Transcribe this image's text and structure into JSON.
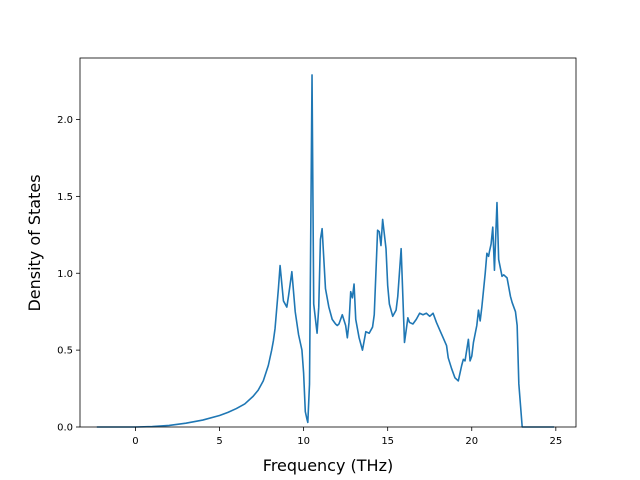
{
  "chart_data": {
    "type": "line",
    "title": "",
    "xlabel": "Frequency (THz)",
    "ylabel": "Density of States",
    "xlim": [
      -3.3,
      26.2
    ],
    "ylim": [
      0.0,
      2.4
    ],
    "grid": false,
    "legend": "none",
    "xticks": [
      0,
      5,
      10,
      15,
      20,
      25
    ],
    "yticks": [
      0.0,
      0.5,
      1.0,
      1.5,
      2.0
    ],
    "xtick_labels": [
      "0",
      "5",
      "10",
      "15",
      "20",
      "25"
    ],
    "ytick_labels": [
      "0.0",
      "0.5",
      "1.0",
      "1.5",
      "2.0"
    ],
    "series": [
      {
        "color": "#1f77b4",
        "x": [
          -2.3,
          -1,
          0,
          1,
          2,
          3,
          4,
          5,
          5.5,
          6,
          6.5,
          7,
          7.3,
          7.6,
          7.9,
          8.1,
          8.2,
          8.3,
          8.5,
          8.6,
          8.8,
          9.0,
          9.1,
          9.3,
          9.5,
          9.7,
          9.9,
          10.0,
          10.1,
          10.2,
          10.25,
          10.35,
          10.5,
          10.6,
          10.8,
          10.9,
          11.0,
          11.1,
          11.3,
          11.5,
          11.7,
          11.9,
          12.0,
          12.1,
          12.3,
          12.5,
          12.6,
          12.7,
          12.8,
          12.9,
          13.0,
          13.1,
          13.3,
          13.5,
          13.7,
          13.9,
          14.1,
          14.2,
          14.4,
          14.5,
          14.6,
          14.7,
          14.9,
          15.0,
          15.1,
          15.3,
          15.5,
          15.6,
          15.8,
          16.0,
          16.2,
          16.3,
          16.5,
          16.7,
          16.9,
          17.1,
          17.3,
          17.5,
          17.7,
          17.9,
          18.1,
          18.3,
          18.5,
          18.6,
          18.8,
          19.0,
          19.2,
          19.3,
          19.4,
          19.5,
          19.6,
          19.8,
          19.9,
          20.0,
          20.1,
          20.3,
          20.4,
          20.5,
          20.6,
          20.8,
          20.9,
          21.0,
          21.05,
          21.15,
          21.25,
          21.35,
          21.5,
          21.6,
          21.8,
          21.9,
          22.1,
          22.3,
          22.4,
          22.6,
          22.7,
          22.8,
          23.0,
          23.5,
          24.5,
          24.9
        ],
        "y": [
          0.0,
          0.0,
          0.0,
          0.003,
          0.01,
          0.025,
          0.045,
          0.075,
          0.095,
          0.12,
          0.15,
          0.2,
          0.24,
          0.3,
          0.4,
          0.5,
          0.56,
          0.64,
          0.9,
          1.05,
          0.82,
          0.78,
          0.85,
          1.01,
          0.75,
          0.6,
          0.5,
          0.35,
          0.1,
          0.05,
          0.03,
          0.28,
          2.29,
          0.8,
          0.61,
          0.78,
          1.22,
          1.29,
          0.9,
          0.78,
          0.7,
          0.67,
          0.66,
          0.67,
          0.73,
          0.66,
          0.58,
          0.68,
          0.88,
          0.84,
          0.93,
          0.7,
          0.58,
          0.5,
          0.62,
          0.61,
          0.65,
          0.73,
          1.28,
          1.27,
          1.18,
          1.35,
          1.16,
          0.92,
          0.8,
          0.72,
          0.76,
          0.85,
          1.16,
          0.55,
          0.71,
          0.68,
          0.67,
          0.7,
          0.74,
          0.73,
          0.74,
          0.72,
          0.74,
          0.68,
          0.63,
          0.58,
          0.53,
          0.45,
          0.38,
          0.32,
          0.3,
          0.35,
          0.4,
          0.44,
          0.43,
          0.57,
          0.43,
          0.46,
          0.55,
          0.66,
          0.76,
          0.69,
          0.78,
          1.0,
          1.13,
          1.11,
          1.14,
          1.19,
          1.3,
          1.02,
          1.46,
          1.09,
          0.98,
          0.99,
          0.97,
          0.85,
          0.81,
          0.75,
          0.66,
          0.28,
          0.0,
          0.0,
          0.0,
          0.0
        ]
      }
    ]
  }
}
